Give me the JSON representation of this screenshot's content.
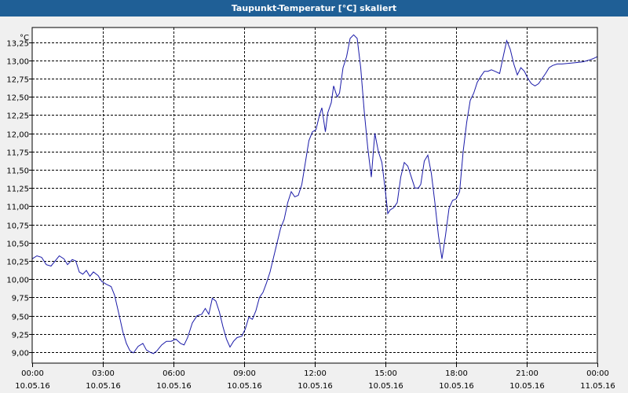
{
  "window": {
    "title": "Taupunkt-Temperatur [°C] skaliert"
  },
  "chart_data": {
    "type": "line",
    "title": "Taupunkt-Temperatur [°C] skaliert",
    "ylabel": "°C",
    "ylim": [
      8.85,
      13.45
    ],
    "xlim_hours": [
      0,
      24
    ],
    "grid": true,
    "line_color": "#1a1aa8",
    "y_ticks": [
      "9,00",
      "9,25",
      "9,50",
      "9,75",
      "10,00",
      "10,25",
      "10,50",
      "10,75",
      "11,00",
      "11,25",
      "11,50",
      "11,75",
      "12,00",
      "12,25",
      "12,50",
      "12,75",
      "13,00",
      "13,25"
    ],
    "y_tick_values": [
      9.0,
      9.25,
      9.5,
      9.75,
      10.0,
      10.25,
      10.5,
      10.75,
      11.0,
      11.25,
      11.5,
      11.75,
      12.0,
      12.25,
      12.5,
      12.75,
      13.0,
      13.25
    ],
    "x_ticks": [
      {
        "hour": 0,
        "time": "00:00",
        "date": "10.05.16"
      },
      {
        "hour": 3,
        "time": "03:00",
        "date": "10.05.16"
      },
      {
        "hour": 6,
        "time": "06:00",
        "date": "10.05.16"
      },
      {
        "hour": 9,
        "time": "09:00",
        "date": "10.05.16"
      },
      {
        "hour": 12,
        "time": "12:00",
        "date": "10.05.16"
      },
      {
        "hour": 15,
        "time": "15:00",
        "date": "10.05.16"
      },
      {
        "hour": 18,
        "time": "18:00",
        "date": "10.05.16"
      },
      {
        "hour": 21,
        "time": "21:00",
        "date": "10.05.16"
      },
      {
        "hour": 24,
        "time": "00:00",
        "date": "11.05.16"
      }
    ],
    "series": [
      {
        "values": [
          [
            0.0,
            10.28
          ],
          [
            0.2,
            10.32
          ],
          [
            0.4,
            10.3
          ],
          [
            0.6,
            10.2
          ],
          [
            0.8,
            10.18
          ],
          [
            1.0,
            10.26
          ],
          [
            1.15,
            10.32
          ],
          [
            1.35,
            10.28
          ],
          [
            1.5,
            10.2
          ],
          [
            1.7,
            10.27
          ],
          [
            1.85,
            10.25
          ],
          [
            2.0,
            10.1
          ],
          [
            2.15,
            10.07
          ],
          [
            2.3,
            10.12
          ],
          [
            2.45,
            10.04
          ],
          [
            2.6,
            10.1
          ],
          [
            2.8,
            10.05
          ],
          [
            2.95,
            9.97
          ],
          [
            3.15,
            9.93
          ],
          [
            3.35,
            9.9
          ],
          [
            3.5,
            9.78
          ],
          [
            3.7,
            9.5
          ],
          [
            3.85,
            9.28
          ],
          [
            4.0,
            9.12
          ],
          [
            4.15,
            9.02
          ],
          [
            4.3,
            8.99
          ],
          [
            4.5,
            9.08
          ],
          [
            4.7,
            9.12
          ],
          [
            4.85,
            9.03
          ],
          [
            5.0,
            9.0
          ],
          [
            5.15,
            8.98
          ],
          [
            5.3,
            9.02
          ],
          [
            5.5,
            9.1
          ],
          [
            5.7,
            9.15
          ],
          [
            5.9,
            9.15
          ],
          [
            6.1,
            9.18
          ],
          [
            6.3,
            9.12
          ],
          [
            6.45,
            9.1
          ],
          [
            6.6,
            9.2
          ],
          [
            6.8,
            9.4
          ],
          [
            7.0,
            9.5
          ],
          [
            7.2,
            9.52
          ],
          [
            7.35,
            9.6
          ],
          [
            7.5,
            9.52
          ],
          [
            7.65,
            9.74
          ],
          [
            7.8,
            9.7
          ],
          [
            7.95,
            9.55
          ],
          [
            8.1,
            9.35
          ],
          [
            8.25,
            9.18
          ],
          [
            8.4,
            9.07
          ],
          [
            8.55,
            9.15
          ],
          [
            8.7,
            9.2
          ],
          [
            8.9,
            9.22
          ],
          [
            9.05,
            9.32
          ],
          [
            9.2,
            9.48
          ],
          [
            9.35,
            9.45
          ],
          [
            9.5,
            9.57
          ],
          [
            9.65,
            9.75
          ],
          [
            9.8,
            9.82
          ],
          [
            9.95,
            9.95
          ],
          [
            10.1,
            10.1
          ],
          [
            10.25,
            10.3
          ],
          [
            10.4,
            10.5
          ],
          [
            10.55,
            10.7
          ],
          [
            10.7,
            10.82
          ],
          [
            10.85,
            11.05
          ],
          [
            11.0,
            11.2
          ],
          [
            11.15,
            11.13
          ],
          [
            11.3,
            11.15
          ],
          [
            11.45,
            11.3
          ],
          [
            11.6,
            11.6
          ],
          [
            11.75,
            11.9
          ],
          [
            11.9,
            12.02
          ],
          [
            12.05,
            12.05
          ],
          [
            12.2,
            12.25
          ],
          [
            12.3,
            12.35
          ],
          [
            12.45,
            12.02
          ],
          [
            12.55,
            12.28
          ],
          [
            12.7,
            12.42
          ],
          [
            12.8,
            12.65
          ],
          [
            12.95,
            12.5
          ],
          [
            13.05,
            12.55
          ],
          [
            13.2,
            12.9
          ],
          [
            13.35,
            13.05
          ],
          [
            13.5,
            13.3
          ],
          [
            13.65,
            13.35
          ],
          [
            13.8,
            13.3
          ],
          [
            13.95,
            12.9
          ],
          [
            14.1,
            12.3
          ],
          [
            14.25,
            11.8
          ],
          [
            14.4,
            11.4
          ],
          [
            14.55,
            12.0
          ],
          [
            14.7,
            11.75
          ],
          [
            14.85,
            11.6
          ],
          [
            15.0,
            11.2
          ],
          [
            15.1,
            10.9
          ],
          [
            15.2,
            10.95
          ],
          [
            15.35,
            10.98
          ],
          [
            15.5,
            11.05
          ],
          [
            15.65,
            11.4
          ],
          [
            15.8,
            11.6
          ],
          [
            15.95,
            11.55
          ],
          [
            16.1,
            11.4
          ],
          [
            16.25,
            11.25
          ],
          [
            16.4,
            11.25
          ],
          [
            16.5,
            11.3
          ],
          [
            16.65,
            11.62
          ],
          [
            16.8,
            11.7
          ],
          [
            16.95,
            11.45
          ],
          [
            17.1,
            11.05
          ],
          [
            17.25,
            10.6
          ],
          [
            17.4,
            10.28
          ],
          [
            17.55,
            10.6
          ],
          [
            17.7,
            10.97
          ],
          [
            17.85,
            11.08
          ],
          [
            18.0,
            11.1
          ],
          [
            18.15,
            11.2
          ],
          [
            18.3,
            11.75
          ],
          [
            18.45,
            12.15
          ],
          [
            18.6,
            12.45
          ],
          [
            18.75,
            12.55
          ],
          [
            18.9,
            12.7
          ],
          [
            19.05,
            12.78
          ],
          [
            19.2,
            12.85
          ],
          [
            19.35,
            12.85
          ],
          [
            19.5,
            12.87
          ],
          [
            19.65,
            12.85
          ],
          [
            19.85,
            12.82
          ],
          [
            20.0,
            13.05
          ],
          [
            20.15,
            13.27
          ],
          [
            20.3,
            13.15
          ],
          [
            20.45,
            12.95
          ],
          [
            20.6,
            12.8
          ],
          [
            20.75,
            12.9
          ],
          [
            20.9,
            12.85
          ],
          [
            21.05,
            12.75
          ],
          [
            21.2,
            12.68
          ],
          [
            21.35,
            12.65
          ],
          [
            21.5,
            12.68
          ],
          [
            21.65,
            12.75
          ],
          [
            21.8,
            12.82
          ],
          [
            21.95,
            12.9
          ],
          [
            22.1,
            12.93
          ],
          [
            22.3,
            12.95
          ],
          [
            22.5,
            12.95
          ],
          [
            22.8,
            12.96
          ],
          [
            23.1,
            12.97
          ],
          [
            23.4,
            12.98
          ],
          [
            23.6,
            13.0
          ],
          [
            23.8,
            13.02
          ],
          [
            24.0,
            13.05
          ]
        ]
      }
    ]
  }
}
